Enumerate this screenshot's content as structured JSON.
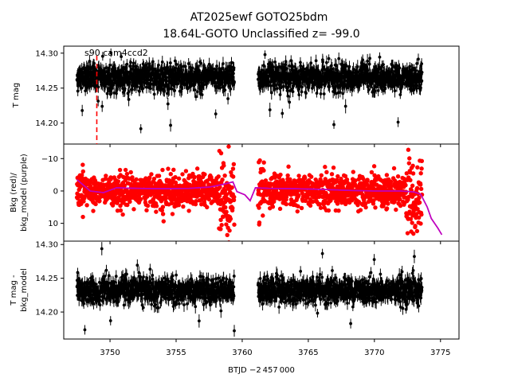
{
  "chart_data": {
    "type": "scatter",
    "title_line1": "AT2025ewf  GOTO25bdm",
    "title_line2": "18.64L-GOTO Unclassified z= -99.0",
    "xlabel": "BTJD −2 457 000",
    "xlim": [
      3746.5,
      3776.4
    ],
    "xticks": [
      3750,
      3755,
      3760,
      3765,
      3770,
      3775
    ],
    "xtick_labels": [
      "3750",
      "3755",
      "3760",
      "3765",
      "3770",
      "3775"
    ],
    "segments": [
      [
        3747.5,
        3759.4
      ],
      [
        3761.2,
        3773.6
      ]
    ],
    "marker_line_x": 3749.0,
    "panels": [
      {
        "id": "tmag",
        "ylabel_lines": [
          "T mag"
        ],
        "ylim": [
          14.31,
          14.17
        ],
        "yticks": [
          14.2,
          14.25,
          14.3
        ],
        "ytick_labels": [
          "14.20",
          "14.25",
          "14.30"
        ],
        "annotation": "s90 cam4ccd2",
        "series": [
          {
            "kind": "errorbar-scatter",
            "color": "#000000",
            "center": 14.265,
            "spread": 0.017,
            "outlier_range": [
              14.19,
              14.3
            ]
          }
        ]
      },
      {
        "id": "bkg",
        "ylabel_lines": [
          "Bkg (red)/",
          "bkg_model (purple)"
        ],
        "ylim": [
          -14.5,
          15.5
        ],
        "yticks": [
          -10,
          0,
          10
        ],
        "ytick_labels": [
          "−10",
          "0",
          "10"
        ],
        "series": [
          {
            "kind": "scatter",
            "name": "Bkg",
            "color": "#ff0000",
            "center": 0,
            "spread": 3.5
          },
          {
            "kind": "line",
            "name": "bkg_model",
            "color": "#bf00bf",
            "points": [
              [
                3747.5,
                -3.5
              ],
              [
                3748.5,
                0.0
              ],
              [
                3749.5,
                0.5
              ],
              [
                3750.5,
                -1.0
              ],
              [
                3752.0,
                -0.8
              ],
              [
                3754.0,
                -0.7
              ],
              [
                3756.0,
                -0.8
              ],
              [
                3757.5,
                -1.2
              ],
              [
                3758.5,
                -2.0
              ],
              [
                3759.3,
                -2.8
              ],
              [
                3759.6,
                0.2
              ],
              [
                3760.2,
                1.2
              ],
              [
                3760.6,
                3.0
              ],
              [
                3761.0,
                -1.0
              ],
              [
                3762.0,
                -0.8
              ],
              [
                3764.0,
                -0.7
              ],
              [
                3766.0,
                -0.5
              ],
              [
                3768.0,
                -0.2
              ],
              [
                3770.0,
                0.0
              ],
              [
                3772.0,
                0.0
              ],
              [
                3773.0,
                0.3
              ],
              [
                3773.5,
                1.0
              ],
              [
                3774.0,
                5.0
              ],
              [
                3774.3,
                8.5
              ],
              [
                3774.8,
                11.5
              ],
              [
                3775.1,
                13.5
              ]
            ]
          }
        ]
      },
      {
        "id": "tmag_model",
        "ylabel_lines": [
          "T mag -",
          "bkg_model"
        ],
        "ylim": [
          14.305,
          14.16
        ],
        "yticks": [
          14.2,
          14.25,
          14.3
        ],
        "ytick_labels": [
          "14.20",
          "14.25",
          "14.30"
        ],
        "series": [
          {
            "kind": "errorbar-scatter",
            "color": "#000000",
            "center": 14.232,
            "spread": 0.017,
            "outlier_range": [
              14.17,
              14.295
            ]
          }
        ]
      }
    ]
  }
}
